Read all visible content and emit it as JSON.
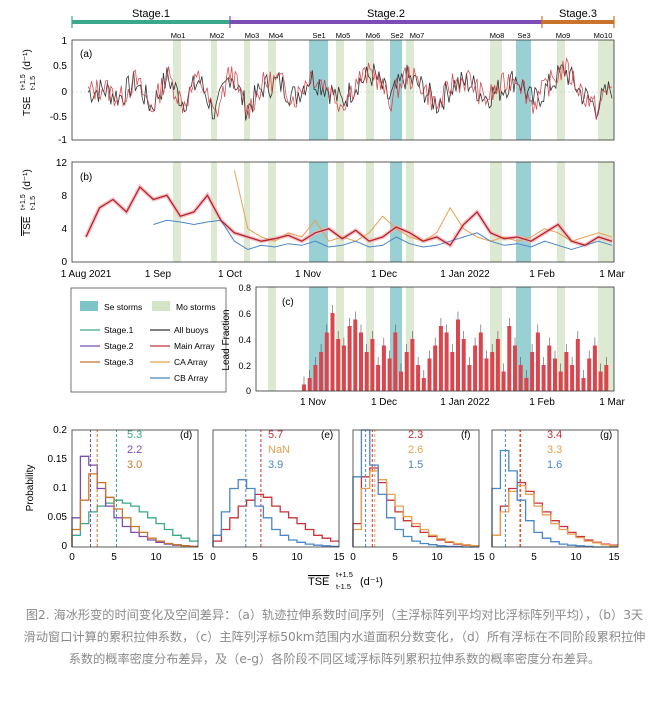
{
  "stages": [
    {
      "label": "Stage.1",
      "color": "#3aa88a"
    },
    {
      "label": "Stage.2",
      "color": "#7b4cb3"
    },
    {
      "label": "Stage.3",
      "color": "#c8742c"
    }
  ],
  "storm_labels": [
    "Mo1",
    "Mo2",
    "Mo3",
    "Mo4",
    "Se1",
    "Mo5",
    "Mo6",
    "Se2",
    "Mo7",
    "Mo8",
    "Se3",
    "Mo9",
    "Mo10"
  ],
  "panel_a": {
    "tag": "(a)",
    "ylabel": "TSE",
    "ylabel_sup": "t+1.5",
    "ylabel_sub": "t-1.5",
    "ylabel_unit": "(d⁻¹)",
    "yticks": [
      "1",
      "0.5",
      "0",
      "-0.5",
      "-1"
    ]
  },
  "panel_b": {
    "tag": "(b)",
    "ylabel": "TSE",
    "ylabel_sup": "t+1.5",
    "ylabel_sub": "t-1.5",
    "ylabel_unit": "(d⁻¹)",
    "yticks": [
      "12",
      "8",
      "4",
      "0"
    ]
  },
  "time_axis": [
    "1 Aug 2021",
    "1 Sep",
    "1 Oct",
    "1 Nov",
    "1 Dec",
    "1 Jan 2022",
    "1 Feb",
    "1 Mar"
  ],
  "legend": {
    "items": [
      {
        "label": "Se storms",
        "color": "#7ec4c8",
        "kind": "patch"
      },
      {
        "label": "Mo storms",
        "color": "#d4e4c6",
        "kind": "patch"
      },
      {
        "label": "Stage.1",
        "color": "#3aa88a",
        "kind": "line"
      },
      {
        "label": "All buoys",
        "color": "#333333",
        "kind": "line"
      },
      {
        "label": "Stage.2",
        "color": "#7b4cb3",
        "kind": "line"
      },
      {
        "label": "Main Array",
        "color": "#c8323a",
        "kind": "line"
      },
      {
        "label": "Stage.3",
        "color": "#c8742c",
        "kind": "line"
      },
      {
        "label": "CA Array",
        "color": "#e8a050",
        "kind": "line"
      },
      {
        "label": "CB Array",
        "color": "#4a86c8",
        "kind": "line"
      }
    ]
  },
  "panel_c": {
    "tag": "(c)",
    "ylabel": "Lead Fraction",
    "yticks": [
      "0.8",
      "0.6",
      "0.4",
      "0.2",
      "0"
    ],
    "xticks": [
      "1 Nov",
      "1 Dec",
      "1 Jan 2022",
      "1 Feb",
      "1 Mar"
    ]
  },
  "hist_common": {
    "ylabel": "Probability",
    "xlabel": "TSE",
    "xlabel_sup": "t+1.5",
    "xlabel_sub": "t-1.5",
    "xlabel_unit": "(d⁻¹)",
    "yticks": [
      "0.2",
      "0.15",
      "0.1",
      "0.05",
      "0"
    ],
    "xticks": [
      "0",
      "5",
      "10",
      "15"
    ]
  },
  "chart_data": [
    {
      "type": "line",
      "title": "(a)",
      "ylabel": "TSE (d-1)",
      "ylim": [
        -1,
        1
      ],
      "series": [
        {
          "name": "All buoys",
          "values": [
            0.0,
            0.05,
            -0.1,
            0.2,
            -0.3,
            0.3,
            -0.2,
            0.25,
            -0.45,
            0.4,
            -0.35,
            0.1,
            0.2,
            -0.1,
            0.3,
            0.1,
            -0.2,
            0.2,
            0.35,
            -0.15,
            0.3,
            0.1,
            -0.25,
            0.15,
            0.2,
            -0.1,
            0.05,
            0.3,
            -0.2,
            0.1,
            0.45,
            0.0,
            -0.3,
            0.1
          ]
        },
        {
          "name": "Main Array",
          "values": [
            0.0,
            0.1,
            -0.15,
            0.25,
            -0.35,
            0.35,
            -0.25,
            0.3,
            -0.5,
            0.45,
            -0.4,
            0.15,
            0.25,
            -0.15,
            0.35,
            0.15,
            -0.25,
            0.25,
            0.4,
            -0.2,
            0.35,
            0.15,
            -0.3,
            0.2,
            0.25,
            -0.15,
            0.1,
            0.35,
            -0.25,
            0.15,
            0.5,
            0.05,
            -0.35,
            0.15
          ]
        }
      ]
    },
    {
      "type": "line",
      "title": "(b)",
      "ylabel": "TSE (d-1)",
      "ylim": [
        0,
        12
      ],
      "series": [
        {
          "name": "Main Array",
          "values": [
            3.0,
            6.5,
            7.5,
            6.0,
            9.0,
            7.5,
            8.0,
            5.5,
            6.0,
            8.0,
            5.0,
            3.5,
            3.0,
            2.5,
            2.8,
            3.2,
            2.5,
            3.5,
            4.0,
            2.8,
            3.8,
            2.5,
            3.0,
            4.2,
            3.5,
            2.5,
            3.0,
            2.0,
            4.5,
            6.0,
            3.5,
            2.8,
            3.0,
            2.5,
            3.5,
            4.5,
            2.5,
            2.0,
            3.0,
            2.5
          ]
        },
        {
          "name": "CA Array",
          "values": [
            null,
            null,
            null,
            null,
            null,
            null,
            null,
            null,
            null,
            null,
            null,
            11.0,
            4.0,
            3.0,
            2.5,
            3.5,
            3.0,
            5.0,
            2.5,
            3.0,
            2.5,
            3.5,
            5.5,
            4.0,
            3.0,
            2.5,
            3.5,
            6.5,
            4.0,
            3.0,
            2.5,
            3.0,
            2.5,
            3.0,
            4.0,
            3.5,
            2.5,
            3.0,
            3.5,
            3.0
          ]
        },
        {
          "name": "CB Array",
          "values": [
            null,
            null,
            null,
            null,
            null,
            4.5,
            5.0,
            4.8,
            4.5,
            4.8,
            5.0,
            2.5,
            1.5,
            2.0,
            1.8,
            2.2,
            2.0,
            2.5,
            1.8,
            2.0,
            2.5,
            1.8,
            2.0,
            3.0,
            2.2,
            1.8,
            2.0,
            2.5,
            3.0,
            3.5,
            2.5,
            2.0,
            2.2,
            1.8,
            2.5,
            2.0,
            1.5,
            2.0,
            2.5,
            2.0
          ]
        }
      ]
    },
    {
      "type": "bar",
      "title": "(c)",
      "ylabel": "Lead Fraction",
      "ylim": [
        0,
        0.8
      ],
      "values": [
        0.05,
        0.1,
        0.2,
        0.3,
        0.45,
        0.6,
        0.4,
        0.35,
        0.5,
        0.55,
        0.45,
        0.3,
        0.4,
        0.2,
        0.35,
        0.25,
        0.45,
        0.15,
        0.3,
        0.4,
        0.2,
        0.1,
        0.25,
        0.35,
        0.5,
        0.45,
        0.3,
        0.55,
        0.4,
        0.2,
        0.35,
        0.45,
        0.25,
        0.3,
        0.4,
        0.15,
        0.5,
        0.35,
        0.2,
        0.1,
        0.3,
        0.45,
        0.2,
        0.35,
        0.25,
        0.15,
        0.3,
        0.2,
        0.4,
        0.1,
        0.25,
        0.35,
        0.15,
        0.2
      ]
    },
    {
      "type": "line",
      "title": "(d)",
      "xlim": [
        0,
        15
      ],
      "ylim": [
        0,
        0.2
      ],
      "series": [
        {
          "name": "Stage.1",
          "median": "5.3",
          "values": [
            0.02,
            0.04,
            0.06,
            0.07,
            0.075,
            0.08,
            0.075,
            0.07,
            0.06,
            0.05,
            0.04,
            0.03,
            0.02,
            0.015,
            0.01
          ]
        },
        {
          "name": "Stage.2",
          "median": "2.2",
          "values": [
            0.05,
            0.155,
            0.14,
            0.1,
            0.07,
            0.05,
            0.035,
            0.025,
            0.018,
            0.012,
            0.008,
            0.005,
            0.003,
            0.002,
            0.001
          ]
        },
        {
          "name": "Stage.3",
          "median": "3.0",
          "values": [
            0.03,
            0.08,
            0.125,
            0.11,
            0.085,
            0.065,
            0.05,
            0.035,
            0.025,
            0.015,
            0.01,
            0.006,
            0.004,
            0.002,
            0.001
          ]
        }
      ]
    },
    {
      "type": "line",
      "title": "(e)",
      "xlim": [
        0,
        15
      ],
      "ylim": [
        0,
        0.2
      ],
      "series": [
        {
          "name": "Main Array",
          "median": "5.7",
          "values": [
            0.01,
            0.03,
            0.05,
            0.07,
            0.08,
            0.09,
            0.085,
            0.07,
            0.06,
            0.05,
            0.04,
            0.03,
            0.02,
            0.015,
            0.01
          ]
        },
        {
          "name": "CA Array",
          "median": "NaN",
          "values": []
        },
        {
          "name": "CB Array",
          "median": "3.9",
          "values": [
            0.02,
            0.06,
            0.1,
            0.115,
            0.1,
            0.07,
            0.05,
            0.03,
            0.02,
            0.012,
            0.008,
            0.005,
            0.003,
            0.002,
            0.001
          ]
        }
      ]
    },
    {
      "type": "line",
      "title": "(f)",
      "xlim": [
        0,
        15
      ],
      "ylim": [
        0,
        0.2
      ],
      "series": [
        {
          "name": "Main Array",
          "median": "2.3",
          "values": [
            0.04,
            0.12,
            0.135,
            0.11,
            0.08,
            0.06,
            0.045,
            0.035,
            0.025,
            0.018,
            0.012,
            0.008,
            0.005,
            0.003,
            0.002
          ]
        },
        {
          "name": "CA Array",
          "median": "2.6",
          "values": [
            0.03,
            0.1,
            0.13,
            0.115,
            0.09,
            0.07,
            0.052,
            0.04,
            0.03,
            0.02,
            0.014,
            0.009,
            0.006,
            0.004,
            0.002
          ]
        },
        {
          "name": "CB Array",
          "median": "1.5",
          "values": [
            0.12,
            0.2,
            0.14,
            0.09,
            0.05,
            0.03,
            0.018,
            0.01,
            0.006,
            0.004,
            0.002,
            0.001,
            0.001,
            0.0,
            0.0
          ]
        }
      ]
    },
    {
      "type": "line",
      "title": "(g)",
      "xlim": [
        0,
        15
      ],
      "ylim": [
        0,
        0.2
      ],
      "series": [
        {
          "name": "Main Array",
          "median": "3.4",
          "values": [
            0.02,
            0.07,
            0.1,
            0.11,
            0.095,
            0.075,
            0.06,
            0.045,
            0.035,
            0.025,
            0.018,
            0.012,
            0.008,
            0.005,
            0.003
          ]
        },
        {
          "name": "CA Array",
          "median": "3.3",
          "values": [
            0.02,
            0.06,
            0.095,
            0.105,
            0.09,
            0.07,
            0.055,
            0.04,
            0.03,
            0.022,
            0.016,
            0.01,
            0.007,
            0.004,
            0.002
          ]
        },
        {
          "name": "CB Array",
          "median": "1.6",
          "values": [
            0.1,
            0.165,
            0.13,
            0.08,
            0.045,
            0.025,
            0.015,
            0.009,
            0.005,
            0.003,
            0.002,
            0.001,
            0.0,
            0.0,
            0.0
          ]
        }
      ]
    }
  ],
  "caption": "图2. 海冰形变的时间变化及空间差异：（a）轨迹拉伸系数时间序列（主浮标阵列平均对比浮标阵列平均），（b）3天滑动窗口计算的累积拉伸系数，（c）主阵列浮标50km范围内水道面积分数变化，（d）所有浮标在不同阶段累积拉伸系数的概率密度分布差异，及（e-g）各阶段不同区域浮标阵列累积拉伸系数的概率密度分布差异。"
}
